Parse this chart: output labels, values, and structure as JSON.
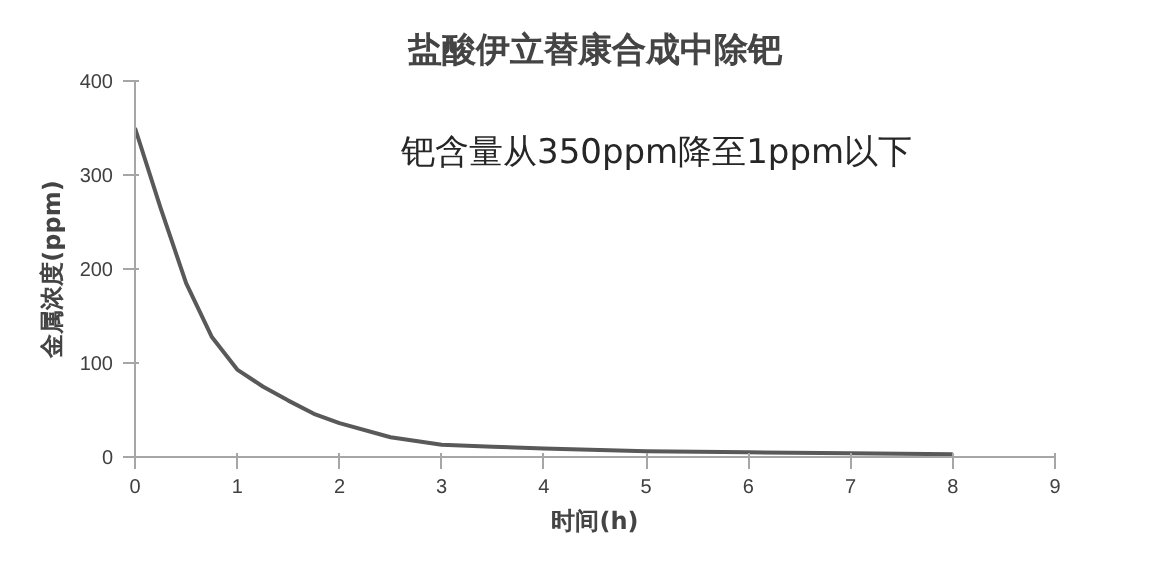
{
  "chart_data": {
    "type": "line",
    "title": "盐酸伊立替康合成中除钯",
    "xlabel": "时间(h)",
    "ylabel": "金属浓度(ppm)",
    "annotations": [
      "钯含量从350ppm降至1ppm以下"
    ],
    "x": [
      0,
      0.25,
      0.5,
      0.75,
      1,
      1.25,
      1.5,
      1.75,
      2,
      2.5,
      3,
      3.5,
      4,
      5,
      6,
      7,
      8
    ],
    "series": [
      {
        "color": "#595959",
        "values": [
          350,
          265,
          185,
          128,
          93,
          75,
          60,
          46,
          36,
          21,
          13,
          11,
          9,
          6,
          5,
          4,
          3
        ]
      }
    ],
    "xlim": [
      0,
      9
    ],
    "xticks": [
      0,
      1,
      2,
      3,
      4,
      5,
      6,
      7,
      8,
      9
    ],
    "ylim": [
      0,
      400
    ],
    "yticks": [
      0,
      100,
      200,
      300,
      400
    ],
    "grid": false,
    "marker": "none",
    "line_style": "solid"
  }
}
